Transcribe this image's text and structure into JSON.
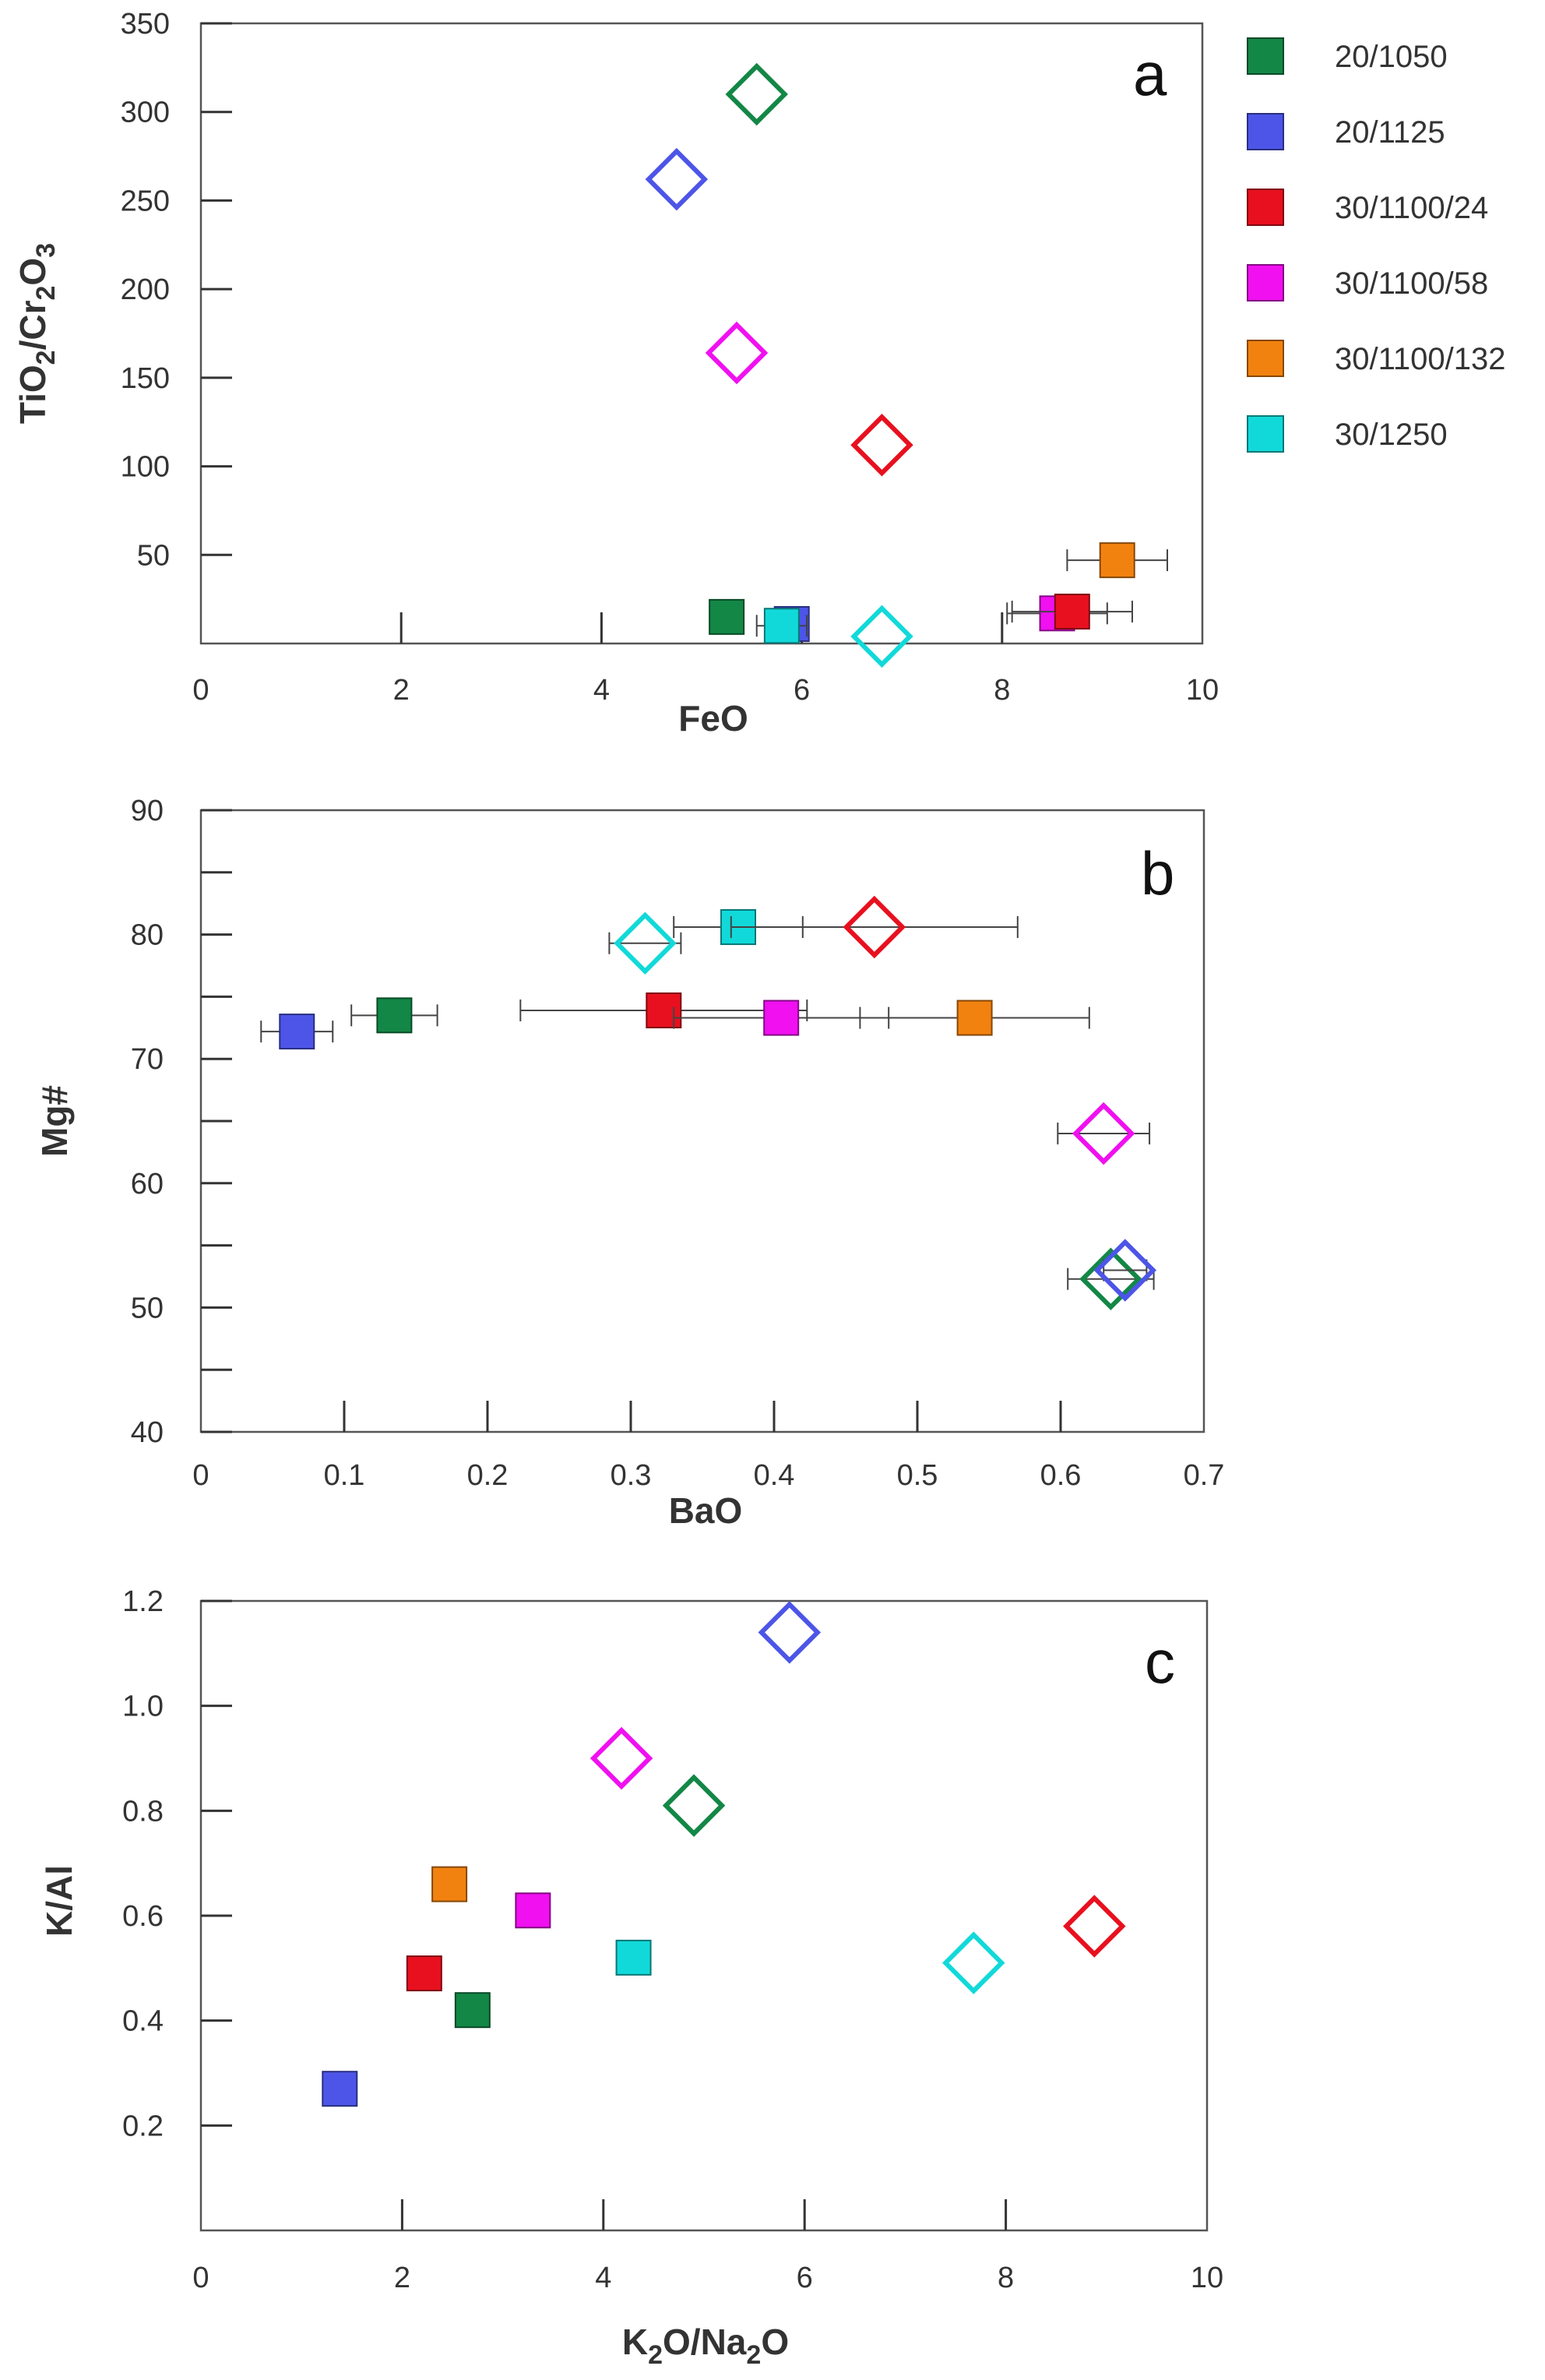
{
  "legend": [
    {
      "key": "20/1050",
      "label": "20/1050",
      "color": "#138746"
    },
    {
      "key": "20/1125",
      "label": "20/1125",
      "color": "#4d55e8"
    },
    {
      "key": "30/1100/24",
      "label": "30/1100/24",
      "color": "#e8101e"
    },
    {
      "key": "30/1100/58",
      "label": "30/1100/58",
      "color": "#f010f0"
    },
    {
      "key": "30/1100/132",
      "label": "30/1100/132",
      "color": "#f2820f"
    },
    {
      "key": "30/1250",
      "label": "30/1250",
      "color": "#12d9d9"
    }
  ],
  "chart_data": [
    {
      "type": "scatter",
      "panel": "a",
      "xlabel": "FeO",
      "ylabel": "TiO2/Cr2O3",
      "xlim": [
        0,
        10
      ],
      "ylim": [
        0,
        350
      ],
      "xticks": [
        "0",
        "2",
        "4",
        "6",
        "8",
        "10"
      ],
      "yticks": [
        "50",
        "100",
        "150",
        "200",
        "250",
        "300",
        "350"
      ],
      "squares": [
        {
          "series": "20/1050",
          "x": 5.25,
          "y": 15
        },
        {
          "series": "20/1125",
          "x": 5.9,
          "y": 11
        },
        {
          "series": "30/1250",
          "x": 5.8,
          "y": 10,
          "xerr": 0.25
        },
        {
          "series": "30/1100/58",
          "x": 8.55,
          "y": 17,
          "xerr": 0.5
        },
        {
          "series": "30/1100/24",
          "x": 8.7,
          "y": 18,
          "xerr": 0.6
        },
        {
          "series": "30/1100/132",
          "x": 9.15,
          "y": 47,
          "xerr": 0.5
        }
      ],
      "diamonds": [
        {
          "series": "20/1050",
          "x": 5.55,
          "y": 310
        },
        {
          "series": "20/1125",
          "x": 4.75,
          "y": 262
        },
        {
          "series": "30/1100/58",
          "x": 5.35,
          "y": 164
        },
        {
          "series": "30/1100/24",
          "x": 6.8,
          "y": 112
        },
        {
          "series": "30/1250",
          "x": 6.8,
          "y": 4
        }
      ]
    },
    {
      "type": "scatter",
      "panel": "b",
      "xlabel": "BaO",
      "ylabel": "Mg#",
      "xlim": [
        0,
        0.7
      ],
      "ylim": [
        40,
        90
      ],
      "xticks": [
        "0",
        "0.1",
        "0.2",
        "0.3",
        "0.4",
        "0.5",
        "0.6",
        "0.7"
      ],
      "yticks": [
        "40",
        "50",
        "60",
        "70",
        "80",
        "90"
      ],
      "squares": [
        {
          "series": "20/1125",
          "x": 0.067,
          "y": 72.2,
          "xerr": 0.025
        },
        {
          "series": "20/1050",
          "x": 0.135,
          "y": 73.5,
          "xerr": 0.03
        },
        {
          "series": "30/1100/24",
          "x": 0.323,
          "y": 73.9,
          "xerr": 0.1
        },
        {
          "series": "30/1100/58",
          "x": 0.405,
          "y": 73.3,
          "xerr": 0.075
        },
        {
          "series": "30/1100/132",
          "x": 0.54,
          "y": 73.3,
          "xerr": 0.08
        },
        {
          "series": "30/1250",
          "x": 0.375,
          "y": 80.6,
          "xerr": 0.045
        }
      ],
      "diamonds": [
        {
          "series": "30/1250",
          "x": 0.31,
          "y": 79.3,
          "xerr": 0.025
        },
        {
          "series": "30/1100/24",
          "x": 0.47,
          "y": 80.6,
          "xerr": 0.1
        },
        {
          "series": "30/1100/58",
          "x": 0.63,
          "y": 64,
          "xerr": 0.032
        },
        {
          "series": "20/1050",
          "x": 0.635,
          "y": 52.3,
          "xerr": 0.03
        },
        {
          "series": "20/1125",
          "x": 0.645,
          "y": 53,
          "xerr": 0.015
        }
      ]
    },
    {
      "type": "scatter",
      "panel": "c",
      "xlabel": "K2O/Na2O",
      "ylabel": "K/Al",
      "xlim": [
        0,
        10
      ],
      "ylim": [
        0,
        1.2
      ],
      "xticks": [
        "0",
        "2",
        "4",
        "6",
        "8",
        "10"
      ],
      "yticks": [
        "0.2",
        "0.4",
        "0.6",
        "0.8",
        "1.0",
        "1.2"
      ],
      "squares": [
        {
          "series": "20/1125",
          "x": 1.38,
          "y": 0.27
        },
        {
          "series": "30/1100/24",
          "x": 2.22,
          "y": 0.49
        },
        {
          "series": "20/1050",
          "x": 2.7,
          "y": 0.42
        },
        {
          "series": "30/1100/132",
          "x": 2.47,
          "y": 0.66
        },
        {
          "series": "30/1100/58",
          "x": 3.3,
          "y": 0.61
        },
        {
          "series": "30/1250",
          "x": 4.3,
          "y": 0.52
        }
      ],
      "diamonds": [
        {
          "series": "30/1100/58",
          "x": 4.18,
          "y": 0.9
        },
        {
          "series": "20/1050",
          "x": 4.9,
          "y": 0.81
        },
        {
          "series": "20/1125",
          "x": 5.85,
          "y": 1.14
        },
        {
          "series": "30/1250",
          "x": 7.68,
          "y": 0.51
        },
        {
          "series": "30/1100/24",
          "x": 8.88,
          "y": 0.58
        }
      ]
    }
  ]
}
